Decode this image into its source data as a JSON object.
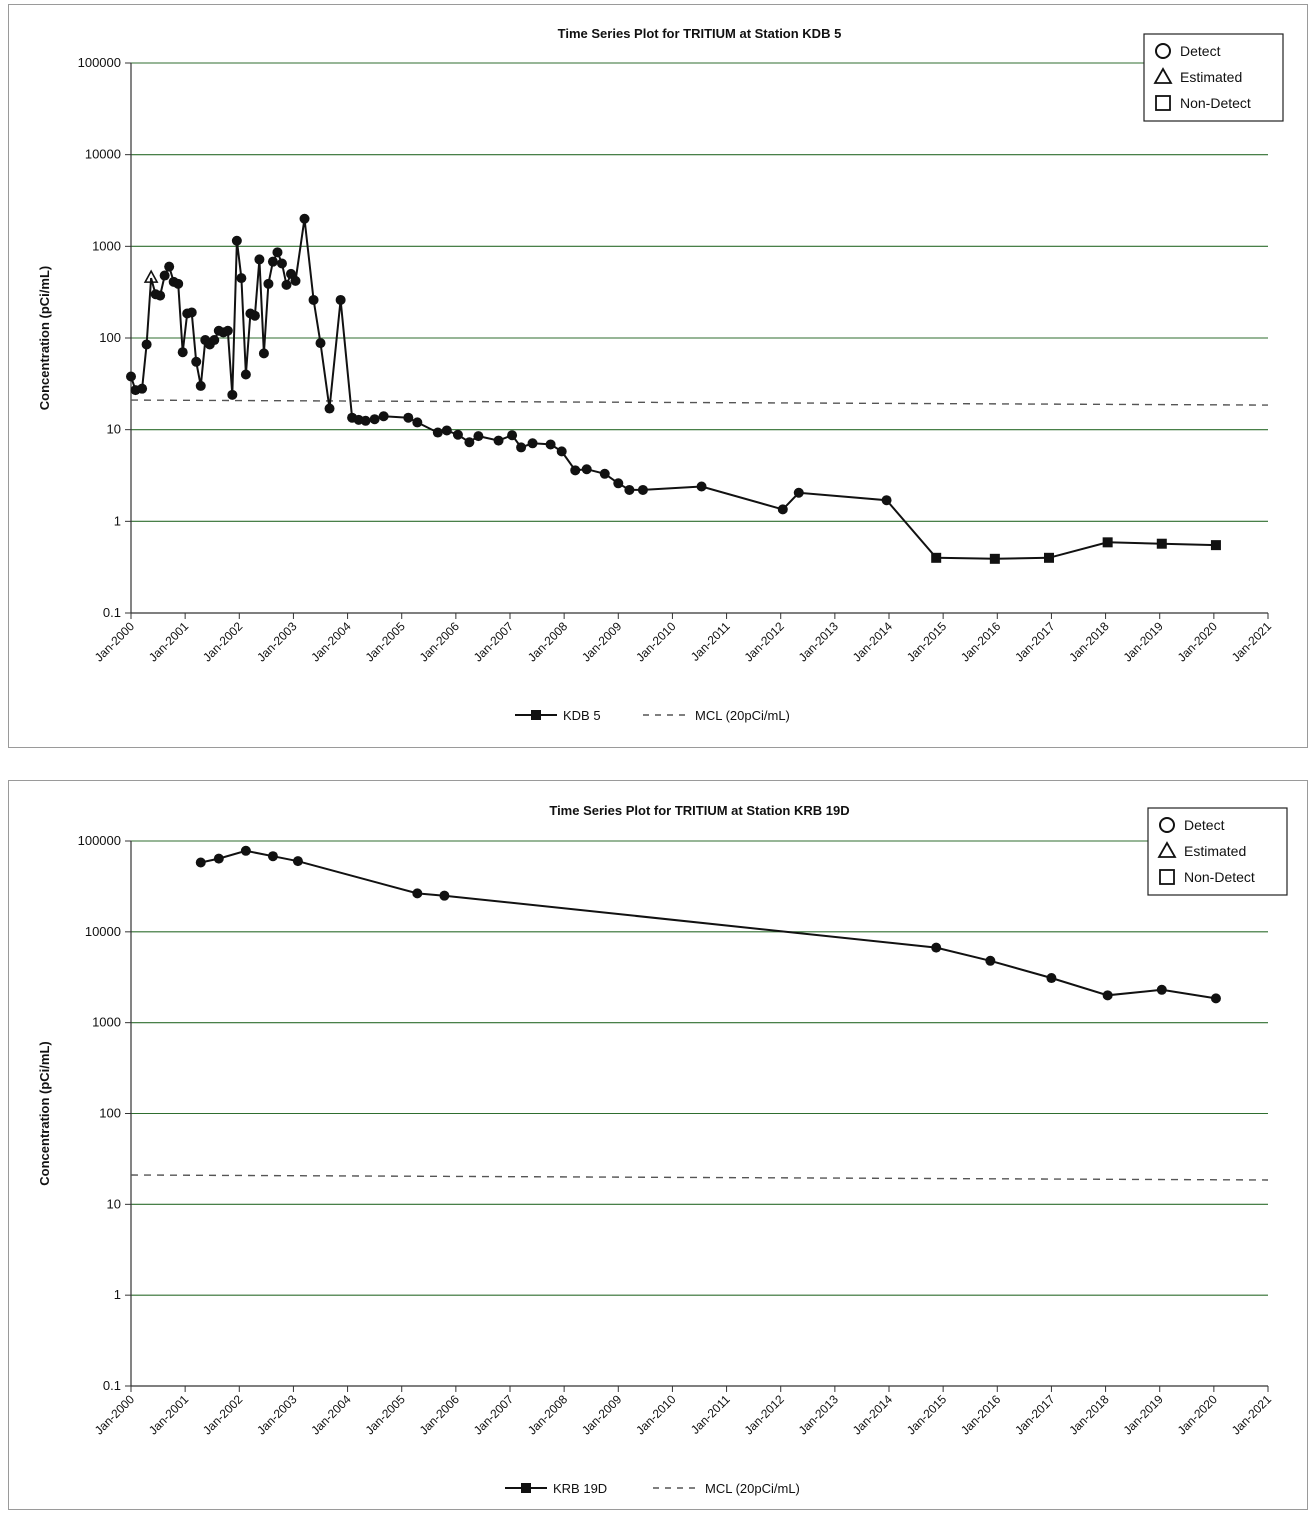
{
  "chart_data": [
    {
      "type": "line",
      "title": "Time Series Plot for TRITIUM at Station KDB  5",
      "xlabel": "",
      "ylabel": "Concentration (pCi/mL)",
      "y_scale": "log",
      "ylim": [
        0.1,
        100000
      ],
      "y_ticks": [
        "100000",
        "10000",
        "1000",
        "100",
        "10",
        "1",
        "0.1"
      ],
      "xlim": [
        "2000-01",
        "2021-01"
      ],
      "x_ticks": [
        "Jan-2000",
        "Jan-2001",
        "Jan-2002",
        "Jan-2003",
        "Jan-2004",
        "Jan-2005",
        "Jan-2006",
        "Jan-2007",
        "Jan-2008",
        "Jan-2009",
        "Jan-2010",
        "Jan-2011",
        "Jan-2012",
        "Jan-2013",
        "Jan-2014",
        "Jan-2015",
        "Jan-2016",
        "Jan-2017",
        "Jan-2018",
        "Jan-2019",
        "Jan-2020",
        "Jan-2021"
      ],
      "grid": "horizontal",
      "symbol_key": [
        "Detect",
        "Estimated",
        "Non-Detect"
      ],
      "symbol_key_position": "top-right",
      "legend_position": "bottom",
      "reference_line": {
        "name": "MCL (20pCi/mL)",
        "value": 20
      },
      "series": [
        {
          "name": "KDB  5",
          "points": [
            {
              "x": "2000-01-01",
              "y": 38,
              "m": "d"
            },
            {
              "x": "2000-02-01",
              "y": 27,
              "m": "d"
            },
            {
              "x": "2000-03-15",
              "y": 28,
              "m": "d"
            },
            {
              "x": "2000-04-15",
              "y": 85,
              "m": "d"
            },
            {
              "x": "2000-05-15",
              "y": 450,
              "m": "e"
            },
            {
              "x": "2000-06-15",
              "y": 300,
              "m": "d"
            },
            {
              "x": "2000-07-15",
              "y": 290,
              "m": "d"
            },
            {
              "x": "2000-08-15",
              "y": 480,
              "m": "d"
            },
            {
              "x": "2000-09-15",
              "y": 600,
              "m": "d"
            },
            {
              "x": "2000-10-15",
              "y": 410,
              "m": "d"
            },
            {
              "x": "2000-11-15",
              "y": 390,
              "m": "d"
            },
            {
              "x": "2000-12-15",
              "y": 70,
              "m": "d"
            },
            {
              "x": "2001-01-15",
              "y": 185,
              "m": "d"
            },
            {
              "x": "2001-02-15",
              "y": 190,
              "m": "d"
            },
            {
              "x": "2001-03-15",
              "y": 55,
              "m": "d"
            },
            {
              "x": "2001-04-15",
              "y": 30,
              "m": "d"
            },
            {
              "x": "2001-05-15",
              "y": 95,
              "m": "d"
            },
            {
              "x": "2001-06-15",
              "y": 85,
              "m": "d"
            },
            {
              "x": "2001-07-15",
              "y": 95,
              "m": "d"
            },
            {
              "x": "2001-08-15",
              "y": 120,
              "m": "d"
            },
            {
              "x": "2001-09-15",
              "y": 115,
              "m": "d"
            },
            {
              "x": "2001-10-15",
              "y": 120,
              "m": "d"
            },
            {
              "x": "2001-11-15",
              "y": 24,
              "m": "d"
            },
            {
              "x": "2001-12-15",
              "y": 1150,
              "m": "d"
            },
            {
              "x": "2002-01-15",
              "y": 450,
              "m": "d"
            },
            {
              "x": "2002-02-15",
              "y": 40,
              "m": "d"
            },
            {
              "x": "2002-03-15",
              "y": 185,
              "m": "d"
            },
            {
              "x": "2002-04-15",
              "y": 175,
              "m": "d"
            },
            {
              "x": "2002-05-15",
              "y": 720,
              "m": "d"
            },
            {
              "x": "2002-06-15",
              "y": 68,
              "m": "d"
            },
            {
              "x": "2002-07-15",
              "y": 390,
              "m": "d"
            },
            {
              "x": "2002-08-15",
              "y": 680,
              "m": "d"
            },
            {
              "x": "2002-09-15",
              "y": 860,
              "m": "d"
            },
            {
              "x": "2002-10-15",
              "y": 650,
              "m": "d"
            },
            {
              "x": "2002-11-15",
              "y": 380,
              "m": "d"
            },
            {
              "x": "2002-12-15",
              "y": 500,
              "m": "d"
            },
            {
              "x": "2003-01-15",
              "y": 420,
              "m": "d"
            },
            {
              "x": "2003-03-15",
              "y": 2000,
              "m": "d"
            },
            {
              "x": "2003-05-15",
              "y": 260,
              "m": "d"
            },
            {
              "x": "2003-07-01",
              "y": 88,
              "m": "d"
            },
            {
              "x": "2003-09-01",
              "y": 17,
              "m": "d"
            },
            {
              "x": "2003-11-15",
              "y": 260,
              "m": "d"
            },
            {
              "x": "2004-02-01",
              "y": 13.5,
              "m": "d"
            },
            {
              "x": "2004-03-15",
              "y": 12.8,
              "m": "d"
            },
            {
              "x": "2004-05-01",
              "y": 12.5,
              "m": "d"
            },
            {
              "x": "2004-07-01",
              "y": 13,
              "m": "d"
            },
            {
              "x": "2004-09-01",
              "y": 14,
              "m": "d"
            },
            {
              "x": "2005-02-15",
              "y": 13.5,
              "m": "d"
            },
            {
              "x": "2005-04-15",
              "y": 12,
              "m": "d"
            },
            {
              "x": "2005-09-01",
              "y": 9.3,
              "m": "d"
            },
            {
              "x": "2005-11-01",
              "y": 9.8,
              "m": "d"
            },
            {
              "x": "2006-01-15",
              "y": 8.8,
              "m": "d"
            },
            {
              "x": "2006-04-01",
              "y": 7.3,
              "m": "d"
            },
            {
              "x": "2006-06-01",
              "y": 8.5,
              "m": "d"
            },
            {
              "x": "2006-10-15",
              "y": 7.6,
              "m": "d"
            },
            {
              "x": "2007-01-15",
              "y": 8.7,
              "m": "d"
            },
            {
              "x": "2007-03-15",
              "y": 6.4,
              "m": "d"
            },
            {
              "x": "2007-06-01",
              "y": 7.1,
              "m": "d"
            },
            {
              "x": "2007-10-01",
              "y": 6.9,
              "m": "d"
            },
            {
              "x": "2007-12-15",
              "y": 5.8,
              "m": "d"
            },
            {
              "x": "2008-03-15",
              "y": 3.6,
              "m": "d"
            },
            {
              "x": "2008-06-01",
              "y": 3.7,
              "m": "d"
            },
            {
              "x": "2008-10-01",
              "y": 3.3,
              "m": "d"
            },
            {
              "x": "2009-01-01",
              "y": 2.6,
              "m": "d"
            },
            {
              "x": "2009-03-15",
              "y": 2.2,
              "m": "d"
            },
            {
              "x": "2009-06-15",
              "y": 2.2,
              "m": "d"
            },
            {
              "x": "2010-07-15",
              "y": 2.4,
              "m": "d"
            },
            {
              "x": "2012-01-15",
              "y": 1.35,
              "m": "d"
            },
            {
              "x": "2012-05-01",
              "y": 2.05,
              "m": "d"
            },
            {
              "x": "2013-12-15",
              "y": 1.7,
              "m": "d"
            },
            {
              "x": "2014-11-15",
              "y": 0.4,
              "m": "n"
            },
            {
              "x": "2015-12-15",
              "y": 0.39,
              "m": "n"
            },
            {
              "x": "2016-12-15",
              "y": 0.4,
              "m": "n"
            },
            {
              "x": "2018-01-15",
              "y": 0.59,
              "m": "n"
            },
            {
              "x": "2019-01-15",
              "y": 0.57,
              "m": "n"
            },
            {
              "x": "2020-01-15",
              "y": 0.55,
              "m": "n"
            }
          ]
        }
      ]
    },
    {
      "type": "line",
      "title": "Time Series Plot for TRITIUM at Station KRB 19D",
      "xlabel": "",
      "ylabel": "Concentration (pCi/mL)",
      "y_scale": "log",
      "ylim": [
        0.1,
        100000
      ],
      "y_ticks": [
        "100000",
        "10000",
        "1000",
        "100",
        "10",
        "1",
        "0.1"
      ],
      "xlim": [
        "2000-01",
        "2021-01"
      ],
      "x_ticks": [
        "Jan-2000",
        "Jan-2001",
        "Jan-2002",
        "Jan-2003",
        "Jan-2004",
        "Jan-2005",
        "Jan-2006",
        "Jan-2007",
        "Jan-2008",
        "Jan-2009",
        "Jan-2010",
        "Jan-2011",
        "Jan-2012",
        "Jan-2013",
        "Jan-2014",
        "Jan-2015",
        "Jan-2016",
        "Jan-2017",
        "Jan-2018",
        "Jan-2019",
        "Jan-2020",
        "Jan-2021"
      ],
      "grid": "horizontal",
      "symbol_key": [
        "Detect",
        "Estimated",
        "Non-Detect"
      ],
      "symbol_key_position": "top-right",
      "legend_position": "bottom",
      "reference_line": {
        "name": "MCL (20pCi/mL)",
        "value": 20
      },
      "series": [
        {
          "name": "KRB 19D",
          "points": [
            {
              "x": "2001-04-15",
              "y": 58000,
              "m": "d"
            },
            {
              "x": "2001-08-15",
              "y": 64000,
              "m": "d"
            },
            {
              "x": "2002-02-15",
              "y": 78000,
              "m": "d"
            },
            {
              "x": "2002-08-15",
              "y": 68000,
              "m": "d"
            },
            {
              "x": "2003-02-01",
              "y": 60000,
              "m": "d"
            },
            {
              "x": "2005-04-15",
              "y": 26500,
              "m": "d"
            },
            {
              "x": "2005-10-15",
              "y": 25000,
              "m": "d"
            },
            {
              "x": "2014-11-15",
              "y": 6700,
              "m": "d"
            },
            {
              "x": "2015-11-15",
              "y": 4800,
              "m": "d"
            },
            {
              "x": "2017-01-01",
              "y": 3100,
              "m": "d"
            },
            {
              "x": "2018-01-15",
              "y": 2000,
              "m": "d"
            },
            {
              "x": "2019-01-15",
              "y": 2300,
              "m": "d"
            },
            {
              "x": "2020-01-15",
              "y": 1850,
              "m": "d"
            }
          ]
        }
      ]
    }
  ],
  "colors": {
    "line": "#111111",
    "grid": "#2f6e2f",
    "mcl": "#555555",
    "frame": "#9a9a9a"
  }
}
